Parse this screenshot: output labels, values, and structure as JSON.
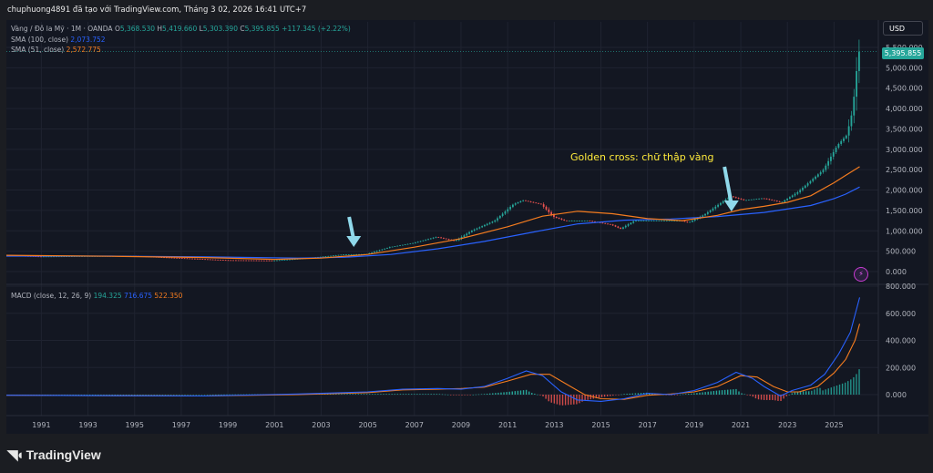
{
  "header": {
    "attribution": "chuphuong4891 đã tạo với TradingView.com, Tháng 3 02, 2026 16:41 UTC+7"
  },
  "legend": {
    "symbol": "Vàng / Đô la Mỹ · 1M · OANDA",
    "ohlc": [
      {
        "label": "O",
        "value": "5,368.530"
      },
      {
        "label": "H",
        "value": "5,419.660"
      },
      {
        "label": "L",
        "value": "5,303.390"
      },
      {
        "label": "C",
        "value": "5,395.855"
      }
    ],
    "change": "+117.345 (+2.22%)",
    "sma100_label": "SMA (100, close)",
    "sma100_value": "2,073.752",
    "sma51_label": "SMA (51, close)",
    "sma51_value": "2,572.775",
    "macd_label": "MACD (close, 12, 26, 9)",
    "macd_hist": "194.325",
    "macd_line": "716.675",
    "macd_signal": "522.350"
  },
  "currency_button": "USD",
  "last_price": "5,395.855",
  "annotation": "Golden cross: chữ thập vàng",
  "colors": {
    "up": "#26a69a",
    "down": "#ef5350",
    "sma100": "#2962ff",
    "sma51": "#f57c1f",
    "macd": "#2962ff",
    "signal": "#f57c1f",
    "arrow": "#8fd8ea",
    "annotation": "#ffeb3b"
  },
  "icons": {
    "alert": "lightning-icon",
    "logo": "tradingview-logo-icon"
  },
  "brand": "TradingView",
  "chart_data": [
    {
      "type": "candlestick",
      "title": "Vàng / Đô la Mỹ · 1M · OANDA",
      "xlabel": "",
      "ylabel": "",
      "x_range": [
        1989.5,
        2026.9
      ],
      "ylim": [
        -200,
        5700
      ],
      "y_ticks": [
        "5,500.000",
        "5,000.000",
        "4,500.000",
        "4,000.000",
        "3,500.000",
        "3,000.000",
        "2,500.000",
        "2,000.000",
        "1,500.000",
        "1,000.000",
        "500.000",
        "0.000"
      ],
      "y_tick_values": [
        5500,
        5000,
        4500,
        4000,
        3500,
        3000,
        2500,
        2000,
        1500,
        1000,
        500,
        0
      ],
      "x_ticks": [
        "1991",
        "1993",
        "1995",
        "1997",
        "1999",
        "2001",
        "2003",
        "2005",
        "2007",
        "2009",
        "2011",
        "2013",
        "2015",
        "2017",
        "2019",
        "2021",
        "2023",
        "2025"
      ],
      "x_tick_values": [
        1991,
        1993,
        1995,
        1997,
        1999,
        2001,
        2003,
        2005,
        2007,
        2009,
        2011,
        2013,
        2015,
        2017,
        2019,
        2021,
        2023,
        2025
      ],
      "price": {
        "x": [
          1989.5,
          1991,
          1993,
          1995,
          1997,
          1999,
          2001,
          2002,
          2003,
          2004,
          2005,
          2006,
          2007,
          2008,
          2008.8,
          2009.5,
          2010.5,
          2011.3,
          2011.7,
          2012.5,
          2013,
          2013.5,
          2014.5,
          2015.5,
          2015.9,
          2016.5,
          2017.5,
          2018.5,
          2018.8,
          2019.5,
          2020.6,
          2021.2,
          2022,
          2022.8,
          2023.5,
          2024.2,
          2024.6,
          2025.2,
          2025.6,
          2025.85,
          2026.0,
          2026.1
        ],
        "y": [
          400,
          370,
          380,
          385,
          330,
          280,
          270,
          310,
          360,
          420,
          430,
          600,
          700,
          850,
          750,
          1000,
          1250,
          1650,
          1750,
          1650,
          1350,
          1250,
          1250,
          1150,
          1050,
          1250,
          1250,
          1250,
          1200,
          1400,
          1850,
          1750,
          1800,
          1700,
          1950,
          2300,
          2500,
          3100,
          3350,
          3950,
          4800,
          5395.855
        ]
      },
      "series": [
        {
          "name": "SMA (100, close)",
          "x": [
            1989.5,
            1994,
            1998,
            2002,
            2004,
            2006,
            2008,
            2010,
            2012,
            2014,
            2016,
            2018,
            2020,
            2022,
            2024,
            2025,
            2025.5,
            2026.1
          ],
          "y": [
            380,
            380,
            360,
            330,
            350,
            420,
            560,
            740,
            960,
            1170,
            1260,
            1290,
            1350,
            1450,
            1620,
            1790,
            1900,
            2073.752
          ]
        },
        {
          "name": "SMA (51, close)",
          "x": [
            1989.5,
            1994,
            1998,
            2001,
            2003,
            2005,
            2007,
            2009,
            2011,
            2012.5,
            2014,
            2015.5,
            2017,
            2018.5,
            2020,
            2021,
            2022,
            2023,
            2024,
            2025,
            2025.5,
            2026.1
          ],
          "y": [
            400,
            375,
            345,
            300,
            330,
            420,
            600,
            810,
            1100,
            1360,
            1480,
            1420,
            1300,
            1250,
            1380,
            1520,
            1600,
            1700,
            1860,
            2180,
            2360,
            2572.775
          ]
        }
      ]
    },
    {
      "type": "line",
      "title": "MACD (close, 12, 26, 9)",
      "xlabel": "",
      "ylabel": "",
      "x_range": [
        1989.5,
        2026.9
      ],
      "ylim": [
        -80,
        820
      ],
      "y_ticks": [
        "800.000",
        "600.000",
        "400.000",
        "200.000",
        "0.000"
      ],
      "y_tick_values": [
        800,
        600,
        400,
        200,
        0
      ],
      "series": [
        {
          "name": "MACD",
          "x": [
            1989.5,
            1998,
            2002,
            2005,
            2006.5,
            2008,
            2009,
            2010,
            2011,
            2011.8,
            2012.5,
            2013.3,
            2014,
            2015,
            2016,
            2017,
            2018,
            2019,
            2020,
            2020.8,
            2021.5,
            2022,
            2022.7,
            2023.2,
            2024,
            2024.6,
            2025.2,
            2025.7,
            2026.1
          ],
          "y": [
            -5,
            -10,
            5,
            20,
            40,
            45,
            40,
            60,
            120,
            175,
            140,
            20,
            -40,
            -50,
            -30,
            10,
            0,
            30,
            90,
            165,
            120,
            60,
            -10,
            30,
            70,
            150,
            300,
            460,
            716.675
          ]
        },
        {
          "name": "Signal",
          "x": [
            1989.5,
            1998,
            2002,
            2005,
            2006.5,
            2008,
            2009,
            2010,
            2011,
            2012,
            2012.8,
            2013.5,
            2014.3,
            2015,
            2016,
            2017,
            2018,
            2019,
            2020,
            2021,
            2021.7,
            2022.4,
            2023,
            2023.5,
            2024.3,
            2025,
            2025.5,
            2025.9,
            2026.1
          ],
          "y": [
            -5,
            -10,
            0,
            15,
            35,
            40,
            45,
            55,
            100,
            150,
            150,
            80,
            0,
            -30,
            -35,
            -5,
            5,
            20,
            60,
            140,
            130,
            60,
            20,
            20,
            60,
            160,
            260,
            400,
            522.35
          ]
        },
        {
          "name": "Histogram",
          "x": [
            2024.5,
            2025,
            2025.5,
            2025.8,
            2026.0,
            2026.1
          ],
          "y": [
            30,
            60,
            90,
            120,
            160,
            194.325
          ]
        }
      ]
    }
  ]
}
